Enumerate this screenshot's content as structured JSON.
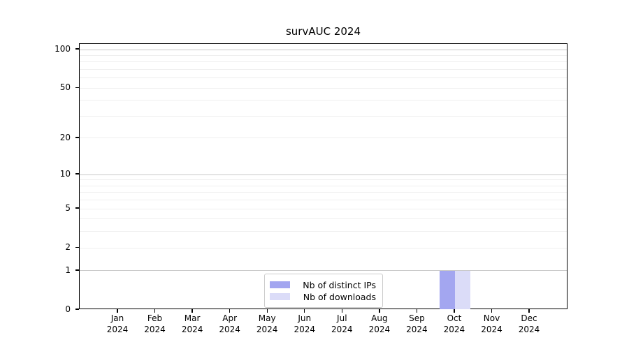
{
  "title": "survAUC 2024",
  "chart_data": {
    "type": "bar",
    "title": "survAUC 2024",
    "categories": [
      "Jan 2024",
      "Feb 2024",
      "Mar 2024",
      "Apr 2024",
      "May 2024",
      "Jun 2024",
      "Jul 2024",
      "Aug 2024",
      "Sep 2024",
      "Oct 2024",
      "Nov 2024",
      "Dec 2024"
    ],
    "series": [
      {
        "name": "Nb of distinct IPs",
        "color": "#a3a6f0",
        "values": [
          0,
          0,
          0,
          0,
          0,
          0,
          0,
          0,
          0,
          1,
          0,
          0
        ]
      },
      {
        "name": "Nb of downloads",
        "color": "#dbdcf8",
        "values": [
          0,
          0,
          0,
          0,
          0,
          0,
          0,
          0,
          0,
          1,
          0,
          0
        ]
      }
    ],
    "xlabel": "",
    "ylabel": "",
    "yscale": "log1p",
    "ylim": [
      0,
      111
    ],
    "ytick_values": [
      0,
      1,
      2,
      5,
      10,
      20,
      50,
      100
    ],
    "ytick_labels": [
      "0",
      "1",
      "2",
      "5",
      "10",
      "20",
      "50",
      "100"
    ],
    "major_grid_values": [
      1,
      10,
      100
    ],
    "minor_grid_values": [
      2,
      3,
      4,
      5,
      6,
      7,
      8,
      9,
      20,
      30,
      40,
      50,
      60,
      70,
      80,
      90
    ],
    "grid": true,
    "legend_position": "bottom-center"
  },
  "legend": {
    "items": [
      {
        "label": "Nb of distinct IPs",
        "color": "#a3a6f0"
      },
      {
        "label": "Nb of downloads",
        "color": "#dbdcf8"
      }
    ]
  },
  "colors": {
    "background": "#ffffff",
    "axis": "#000000",
    "major_grid": "#c9c9c9",
    "minor_grid": "#efefef",
    "legend_border": "#cccccc"
  }
}
